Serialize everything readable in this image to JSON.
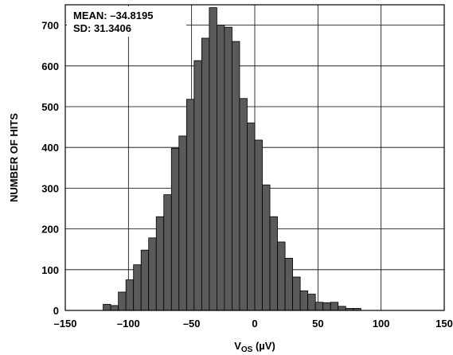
{
  "chart_data": {
    "type": "bar",
    "subtype": "histogram",
    "xlabel_main": "V",
    "xlabel_sub": "OS",
    "xlabel_unit": " (µV)",
    "ylabel": "NUMBER OF HITS",
    "xlim": [
      -150,
      150
    ],
    "ylim": [
      0,
      750
    ],
    "x_ticks": [
      "–150",
      "–100",
      "–50",
      "0",
      "50",
      "100",
      "150"
    ],
    "x_tick_values": [
      -150,
      -100,
      -50,
      0,
      50,
      100,
      150
    ],
    "y_ticks": [
      "0",
      "100",
      "200",
      "300",
      "400",
      "500",
      "600",
      "700"
    ],
    "y_tick_values": [
      0,
      100,
      200,
      300,
      400,
      500,
      600,
      700
    ],
    "grid": true,
    "bin_width": 6,
    "bin_starts": [
      -120,
      -114,
      -108,
      -102,
      -96,
      -90,
      -84,
      -78,
      -72,
      -66,
      -60,
      -54,
      -48,
      -42,
      -36,
      -30,
      -24,
      -18,
      -12,
      -6,
      0,
      6,
      12,
      18,
      24,
      30,
      36,
      42,
      48,
      54,
      60,
      66,
      72,
      78
    ],
    "counts": [
      15,
      12,
      45,
      75,
      112,
      148,
      178,
      230,
      284,
      398,
      428,
      518,
      613,
      668,
      743,
      700,
      695,
      660,
      520,
      460,
      418,
      308,
      230,
      168,
      128,
      82,
      48,
      40,
      20,
      19,
      20,
      10,
      5,
      5
    ],
    "annotations": {
      "mean": "MEAN: –34.8195",
      "sd": "SD: 31.3406"
    }
  }
}
